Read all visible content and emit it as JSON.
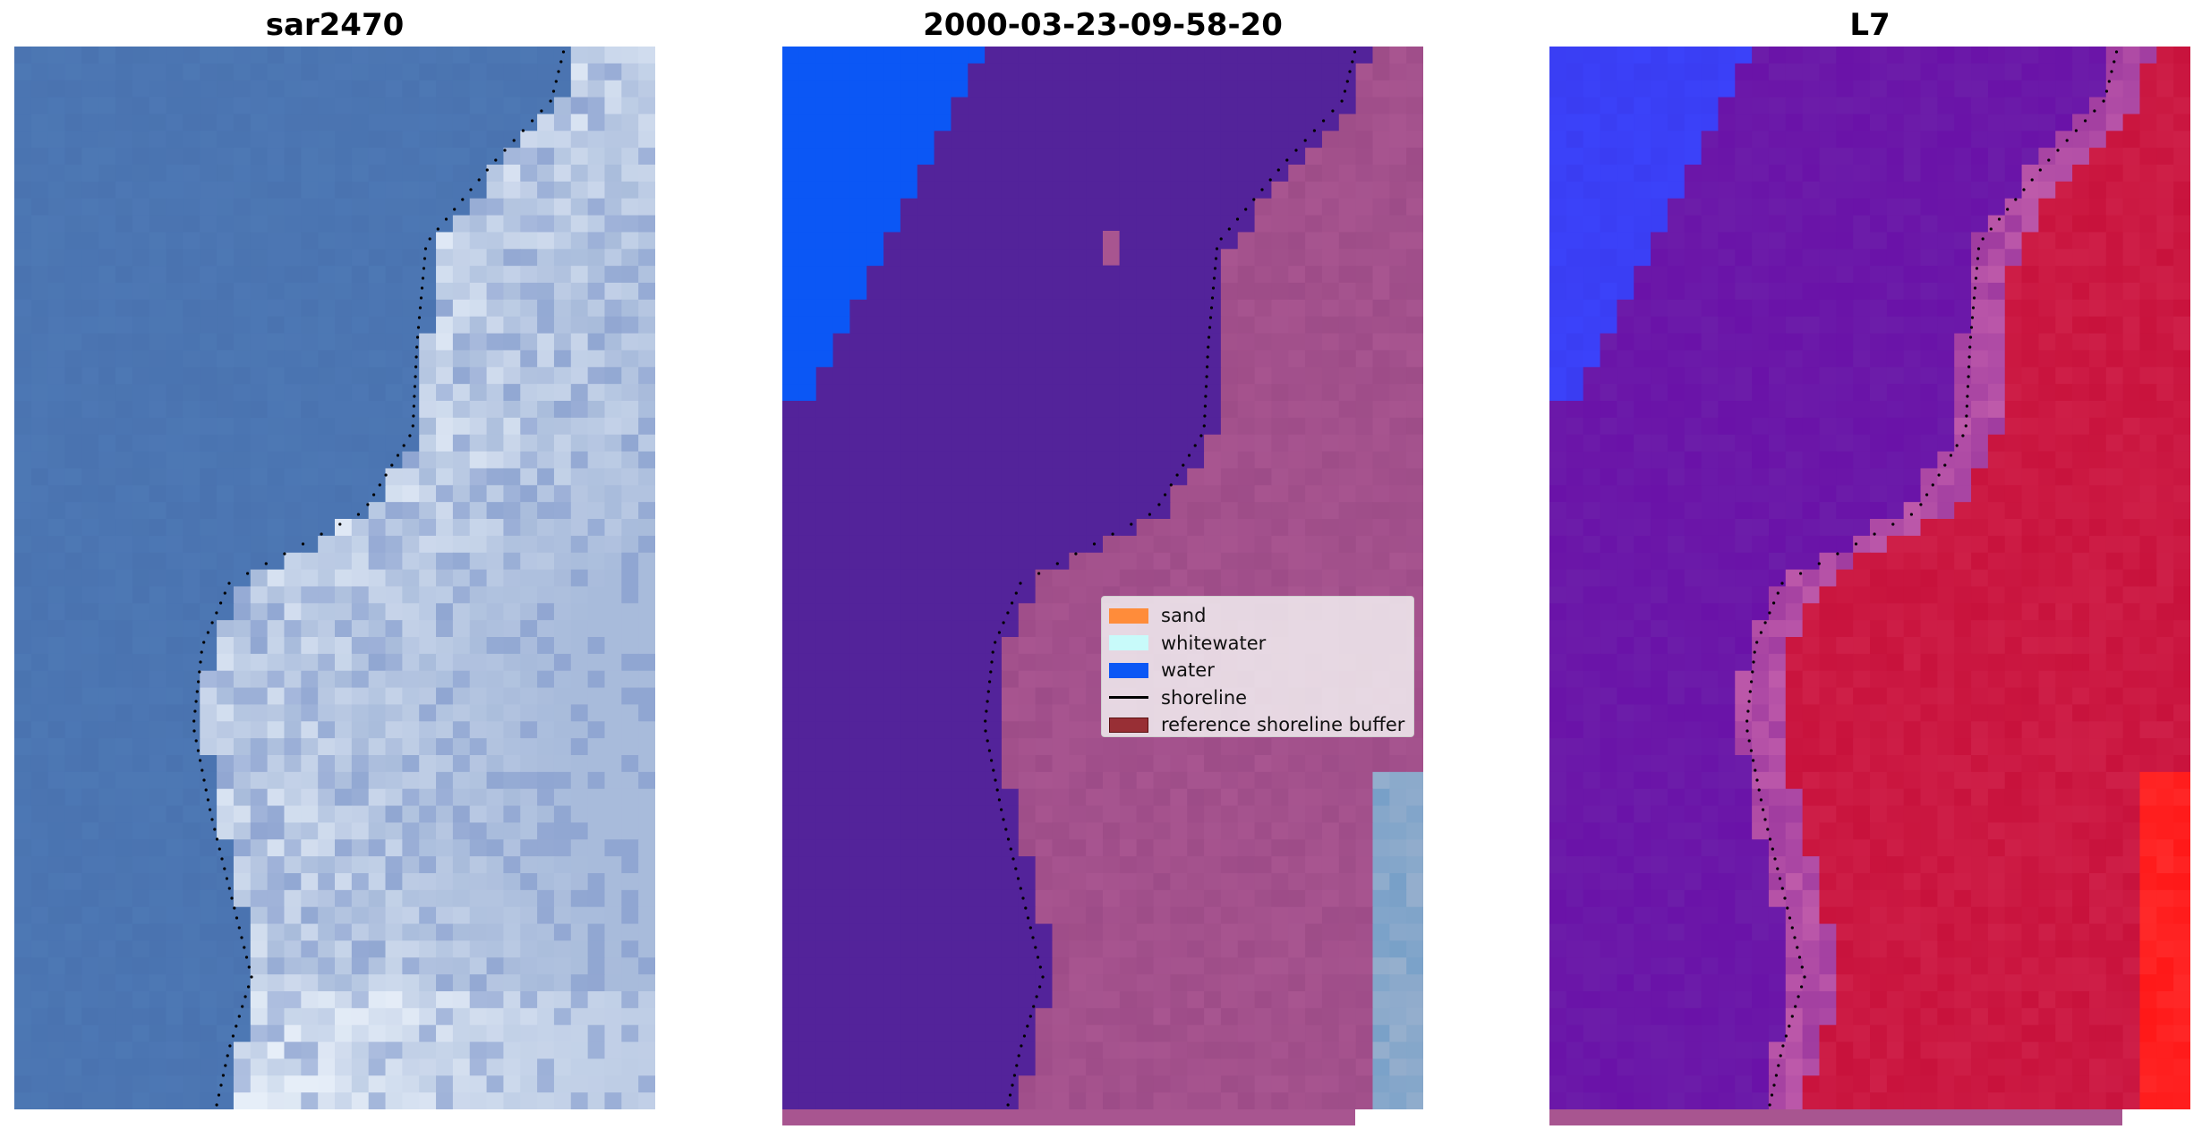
{
  "panels": [
    {
      "title": "sar2470",
      "kind": "rgb-composite"
    },
    {
      "title": "2000-03-23-09-58-20",
      "kind": "classified"
    },
    {
      "title": "L7",
      "kind": "index-map"
    }
  ],
  "legend": {
    "items": [
      {
        "label": "sand",
        "color": "#ff8c3a"
      },
      {
        "label": "whitewater",
        "color": "#c8fafa"
      },
      {
        "label": "water",
        "color": "#0b57f5"
      },
      {
        "label": "shoreline",
        "color": "#000000",
        "type": "line"
      },
      {
        "label": "reference shoreline buffer",
        "color": "#982f35"
      }
    ]
  },
  "colors": {
    "rgb_water": "#4a73b0",
    "rgb_surf": "#a8bbdb",
    "rgb_foam": "#e6eef8",
    "class_water": "#0b57f5",
    "class_background": "#53239a",
    "class_buffer_overlay": "#a85590",
    "index_low": "#3a3df2",
    "index_mid": "#6a12a8",
    "index_high": "#c8123c",
    "index_max": "#ff1818"
  }
}
